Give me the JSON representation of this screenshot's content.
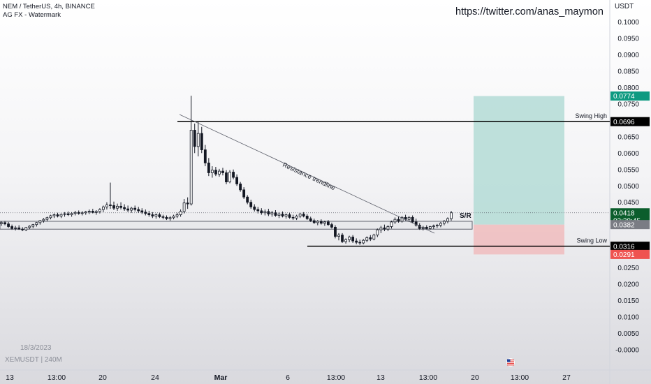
{
  "header": {
    "title": "NEM / TetherUS, 4h, BINANCE",
    "indicator": "AG FX - Watermark"
  },
  "watermark": {
    "url": "https://twitter.com/anas_maymon"
  },
  "footer": {
    "date": "18/3/2023",
    "symbol": "XEMUSDT | 240M"
  },
  "colors": {
    "candle": "#131722",
    "target_zone": "#b4dcd6",
    "stop_zone": "#f0bcbd",
    "price_label": "#0b5d2c",
    "target_label": "#0e9a81",
    "stop_label": "#ef5350",
    "sr_label": "#7a7c84"
  },
  "chart_data": {
    "type": "candlestick",
    "y_axis": {
      "title": "USDT",
      "ylim": [
        -0.0035,
        0.1035
      ],
      "ticks": [
        "0.1000",
        "0.0950",
        "0.0900",
        "0.0850",
        "0.0800",
        "0.0750",
        "0.0650",
        "0.0600",
        "0.0550",
        "0.0500",
        "0.0450",
        "0.0250",
        "0.0200",
        "0.0150",
        "0.0100",
        "0.0050",
        "-0.0000"
      ]
    },
    "x_axis": {
      "ticks": [
        "13",
        "13:00",
        "20",
        "24",
        "Mar",
        "6",
        "13:00",
        "13",
        "13:00",
        "20",
        "13:00",
        "27"
      ],
      "bold_ticks": [
        "Mar"
      ]
    },
    "candles": [
      [
        0.0385,
        0.0392,
        0.0378,
        0.0388
      ],
      [
        0.0388,
        0.0393,
        0.038,
        0.0384
      ],
      [
        0.0384,
        0.039,
        0.0372,
        0.0376
      ],
      [
        0.0376,
        0.0382,
        0.0366,
        0.037
      ],
      [
        0.037,
        0.0378,
        0.0364,
        0.0372
      ],
      [
        0.0372,
        0.038,
        0.0366,
        0.0368
      ],
      [
        0.0368,
        0.0374,
        0.0362,
        0.0366
      ],
      [
        0.0366,
        0.0375,
        0.0362,
        0.0373
      ],
      [
        0.0373,
        0.038,
        0.0368,
        0.0377
      ],
      [
        0.0377,
        0.0384,
        0.0371,
        0.0382
      ],
      [
        0.0382,
        0.039,
        0.0376,
        0.0388
      ],
      [
        0.0388,
        0.0396,
        0.0382,
        0.0394
      ],
      [
        0.0394,
        0.0402,
        0.0388,
        0.0398
      ],
      [
        0.0398,
        0.0406,
        0.0392,
        0.0403
      ],
      [
        0.0403,
        0.0412,
        0.0398,
        0.0409
      ],
      [
        0.0409,
        0.0416,
        0.0402,
        0.0412
      ],
      [
        0.0412,
        0.0418,
        0.0404,
        0.0408
      ],
      [
        0.0408,
        0.0416,
        0.0402,
        0.0413
      ],
      [
        0.0413,
        0.042,
        0.0406,
        0.0415
      ],
      [
        0.0415,
        0.0422,
        0.0408,
        0.0412
      ],
      [
        0.0412,
        0.042,
        0.0406,
        0.0416
      ],
      [
        0.0416,
        0.0424,
        0.041,
        0.0419
      ],
      [
        0.0419,
        0.0425,
        0.0412,
        0.0416
      ],
      [
        0.0416,
        0.0423,
        0.041,
        0.0418
      ],
      [
        0.0418,
        0.0424,
        0.0412,
        0.0421
      ],
      [
        0.0421,
        0.0428,
        0.0414,
        0.0423
      ],
      [
        0.0423,
        0.043,
        0.0416,
        0.0419
      ],
      [
        0.0419,
        0.0426,
        0.0412,
        0.0422
      ],
      [
        0.0422,
        0.0432,
        0.0416,
        0.0428
      ],
      [
        0.0428,
        0.044,
        0.042,
        0.0436
      ],
      [
        0.0436,
        0.045,
        0.0428,
        0.0442
      ],
      [
        0.0442,
        0.051,
        0.043,
        0.044
      ],
      [
        0.044,
        0.0452,
        0.0426,
        0.0432
      ],
      [
        0.0432,
        0.0446,
        0.0424,
        0.0438
      ],
      [
        0.0438,
        0.045,
        0.0428,
        0.0434
      ],
      [
        0.0434,
        0.0444,
        0.0424,
        0.043
      ],
      [
        0.043,
        0.044,
        0.042,
        0.0426
      ],
      [
        0.0426,
        0.0436,
        0.0418,
        0.0432
      ],
      [
        0.0432,
        0.044,
        0.0422,
        0.0428
      ],
      [
        0.0428,
        0.0436,
        0.0418,
        0.0424
      ],
      [
        0.0424,
        0.0432,
        0.0414,
        0.042
      ],
      [
        0.042,
        0.0428,
        0.041,
        0.0416
      ],
      [
        0.0416,
        0.0424,
        0.0406,
        0.0412
      ],
      [
        0.0412,
        0.042,
        0.0402,
        0.0408
      ],
      [
        0.0408,
        0.0416,
        0.04,
        0.0412
      ],
      [
        0.0412,
        0.0418,
        0.0402,
        0.0406
      ],
      [
        0.0406,
        0.0412,
        0.0398,
        0.0404
      ],
      [
        0.0404,
        0.041,
        0.0396,
        0.04
      ],
      [
        0.04,
        0.0408,
        0.0394,
        0.0403
      ],
      [
        0.0403,
        0.0412,
        0.0398,
        0.0408
      ],
      [
        0.0408,
        0.0418,
        0.0402,
        0.0412
      ],
      [
        0.0412,
        0.0428,
        0.0406,
        0.0422
      ],
      [
        0.0422,
        0.046,
        0.0416,
        0.0448
      ],
      [
        0.0448,
        0.0465,
        0.043,
        0.0445
      ],
      [
        0.0445,
        0.0775,
        0.044,
        0.067
      ],
      [
        0.067,
        0.069,
        0.06,
        0.062
      ],
      [
        0.062,
        0.0695,
        0.059,
        0.066
      ],
      [
        0.066,
        0.068,
        0.06,
        0.061
      ],
      [
        0.061,
        0.0625,
        0.056,
        0.057
      ],
      [
        0.057,
        0.0585,
        0.053,
        0.054
      ],
      [
        0.054,
        0.056,
        0.0525,
        0.0548
      ],
      [
        0.0548,
        0.0558,
        0.053,
        0.0536
      ],
      [
        0.0536,
        0.0552,
        0.0528,
        0.0545
      ],
      [
        0.0545,
        0.0555,
        0.0532,
        0.054
      ],
      [
        0.054,
        0.0548,
        0.0505,
        0.0512
      ],
      [
        0.0512,
        0.0548,
        0.0508,
        0.0542
      ],
      [
        0.0542,
        0.055,
        0.052,
        0.0526
      ],
      [
        0.0526,
        0.0535,
        0.05,
        0.0506
      ],
      [
        0.0506,
        0.0512,
        0.0482,
        0.0488
      ],
      [
        0.0488,
        0.0496,
        0.046,
        0.0466
      ],
      [
        0.0466,
        0.0472,
        0.0444,
        0.045
      ],
      [
        0.045,
        0.0458,
        0.043,
        0.0436
      ],
      [
        0.0436,
        0.0444,
        0.0422,
        0.0428
      ],
      [
        0.0428,
        0.0436,
        0.0416,
        0.0424
      ],
      [
        0.0424,
        0.0432,
        0.0412,
        0.0418
      ],
      [
        0.0418,
        0.0428,
        0.041,
        0.0422
      ],
      [
        0.0422,
        0.043,
        0.0408,
        0.0414
      ],
      [
        0.0414,
        0.0424,
        0.0406,
        0.0418
      ],
      [
        0.0418,
        0.0426,
        0.0406,
        0.041
      ],
      [
        0.041,
        0.042,
        0.0402,
        0.0414
      ],
      [
        0.0414,
        0.0422,
        0.0404,
        0.0408
      ],
      [
        0.0408,
        0.0416,
        0.04,
        0.0412
      ],
      [
        0.0412,
        0.0418,
        0.04,
        0.0404
      ],
      [
        0.0404,
        0.0412,
        0.0396,
        0.0402
      ],
      [
        0.0402,
        0.0412,
        0.0396,
        0.0408
      ],
      [
        0.0408,
        0.0418,
        0.0402,
        0.0414
      ],
      [
        0.0414,
        0.042,
        0.0404,
        0.0408
      ],
      [
        0.0408,
        0.0414,
        0.0396,
        0.04
      ],
      [
        0.04,
        0.0406,
        0.039,
        0.0394
      ],
      [
        0.0394,
        0.04,
        0.0384,
        0.0388
      ],
      [
        0.0388,
        0.0396,
        0.038,
        0.0392
      ],
      [
        0.0392,
        0.0398,
        0.0382,
        0.0386
      ],
      [
        0.0386,
        0.0394,
        0.0378,
        0.039
      ],
      [
        0.039,
        0.0396,
        0.0378,
        0.0382
      ],
      [
        0.0382,
        0.0388,
        0.037,
        0.0374
      ],
      [
        0.0374,
        0.038,
        0.034,
        0.0346
      ],
      [
        0.0346,
        0.0356,
        0.0334,
        0.035
      ],
      [
        0.035,
        0.0356,
        0.0326,
        0.033
      ],
      [
        0.033,
        0.034,
        0.0324,
        0.0336
      ],
      [
        0.0336,
        0.0348,
        0.0328,
        0.0344
      ],
      [
        0.0344,
        0.035,
        0.0326,
        0.0332
      ],
      [
        0.0332,
        0.034,
        0.0322,
        0.0328
      ],
      [
        0.0328,
        0.0336,
        0.032,
        0.0326
      ],
      [
        0.0326,
        0.0338,
        0.0322,
        0.0334
      ],
      [
        0.0334,
        0.0346,
        0.0328,
        0.0342
      ],
      [
        0.0342,
        0.035,
        0.0332,
        0.0338
      ],
      [
        0.0338,
        0.0354,
        0.0334,
        0.035
      ],
      [
        0.035,
        0.037,
        0.0344,
        0.0366
      ],
      [
        0.0366,
        0.0378,
        0.0356,
        0.0372
      ],
      [
        0.0372,
        0.0382,
        0.0362,
        0.0368
      ],
      [
        0.0368,
        0.038,
        0.0362,
        0.0376
      ],
      [
        0.0376,
        0.0394,
        0.037,
        0.039
      ],
      [
        0.039,
        0.0404,
        0.0384,
        0.0398
      ],
      [
        0.0398,
        0.0406,
        0.0388,
        0.0392
      ],
      [
        0.0392,
        0.0408,
        0.0388,
        0.0404
      ],
      [
        0.0404,
        0.0412,
        0.0394,
        0.0398
      ],
      [
        0.0398,
        0.0408,
        0.039,
        0.0404
      ],
      [
        0.0404,
        0.041,
        0.0386,
        0.039
      ],
      [
        0.039,
        0.04,
        0.0376,
        0.038
      ],
      [
        0.038,
        0.0386,
        0.0366,
        0.037
      ],
      [
        0.037,
        0.0378,
        0.0364,
        0.0374
      ],
      [
        0.0374,
        0.038,
        0.0366,
        0.037
      ],
      [
        0.037,
        0.0378,
        0.0366,
        0.0376
      ],
      [
        0.0376,
        0.0382,
        0.0368,
        0.0378
      ],
      [
        0.0378,
        0.0384,
        0.0372,
        0.038
      ],
      [
        0.038,
        0.039,
        0.0374,
        0.0386
      ],
      [
        0.0386,
        0.0396,
        0.038,
        0.0392
      ],
      [
        0.0392,
        0.0404,
        0.0386,
        0.04
      ],
      [
        0.04,
        0.0424,
        0.0394,
        0.0418
      ]
    ],
    "levels": [
      {
        "name": "Swing High",
        "value": 0.0696
      },
      {
        "name": "Swing Low",
        "value": 0.0316
      }
    ],
    "sr_zone": {
      "label": "S/R",
      "low": 0.0368,
      "high": 0.0392
    },
    "trendline": {
      "label": "Resistance trendline"
    },
    "position": {
      "entry": 0.0382,
      "target": 0.0774,
      "stop": 0.0291
    },
    "price_labels": [
      {
        "key": "target",
        "text": "0.0774",
        "value": 0.0774
      },
      {
        "key": "swing_high",
        "text": "0.0696",
        "value": 0.0696
      },
      {
        "key": "current",
        "text": "0.0418",
        "sub": "02:39:45",
        "value": 0.0418
      },
      {
        "key": "entry",
        "text": "0.0382",
        "value": 0.0382
      },
      {
        "key": "swing_low",
        "text": "0.0316",
        "value": 0.0316
      },
      {
        "key": "stop",
        "text": "0.0291",
        "value": 0.0291
      }
    ]
  }
}
